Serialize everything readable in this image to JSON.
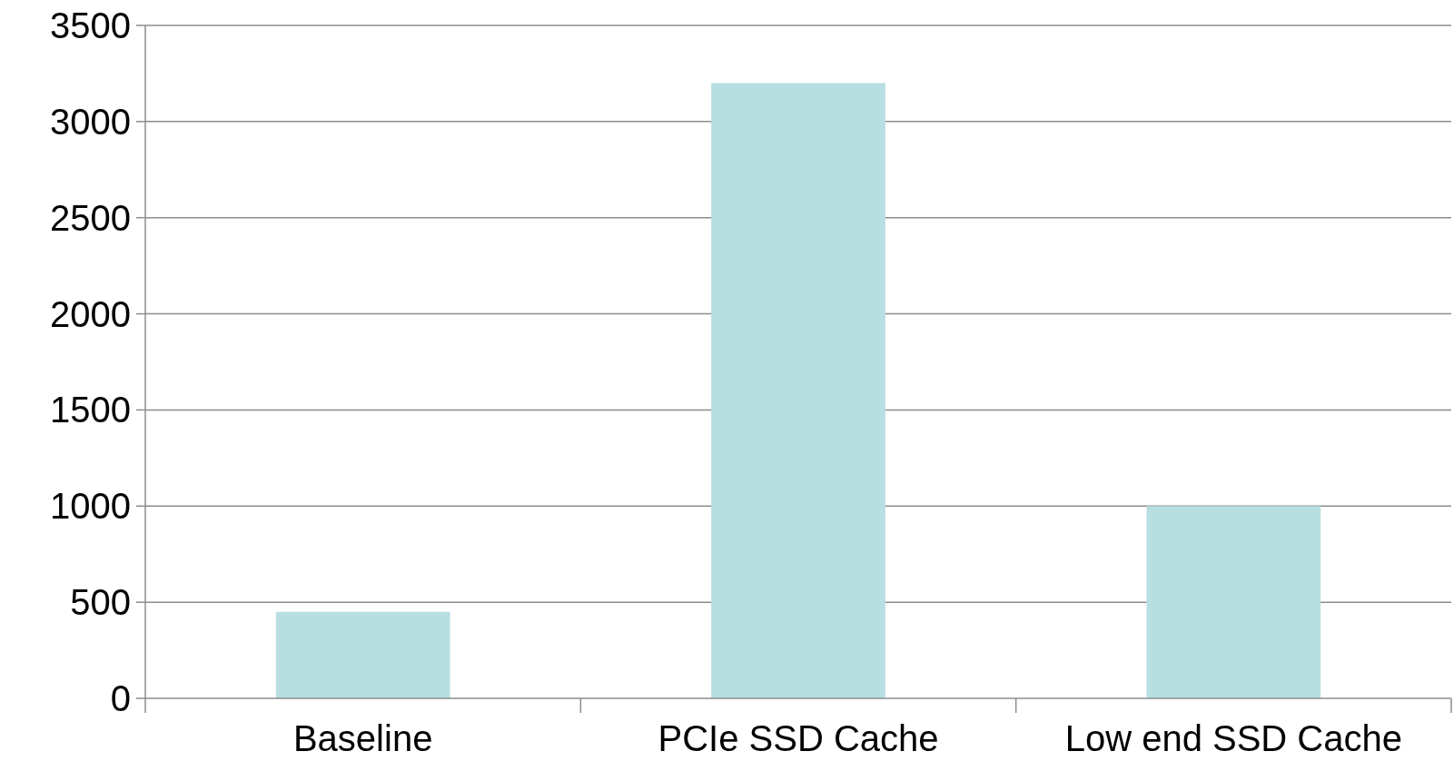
{
  "chart_data": {
    "type": "bar",
    "categories": [
      "Baseline",
      "PCIe SSD Cache",
      "Low end SSD Cache"
    ],
    "values": [
      450,
      3200,
      1000
    ],
    "color": "#b7dfe2",
    "ylim": [
      0,
      3500
    ],
    "yticks": [
      0,
      500,
      1000,
      1500,
      2000,
      2500,
      3000,
      3500
    ],
    "grid": "y"
  }
}
